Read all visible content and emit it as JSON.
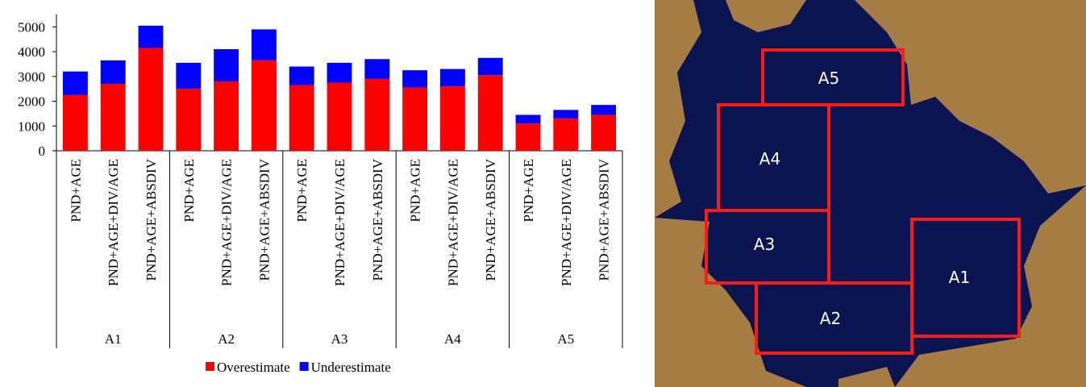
{
  "chart_data": {
    "type": "stacked_bar",
    "categories": [
      "PND+AGE",
      "PND+AGE+DIV/AGE",
      "PND+AGE+ABSDIV",
      "PND+AGE",
      "PND+AGE+DIV/AGE",
      "PND+AGE+ABSDIV",
      "PND+AGE",
      "PND+AGE+DIV/AGE",
      "PND+AGE+ABSDIV",
      "PND+AGE",
      "PND+AGE+DIV/AGE",
      "PND+AGE+ABSDIV",
      "PND+AGE",
      "PND+AGE+DIV/AGE",
      "PND+AGE+ABSDIV"
    ],
    "groups": [
      "A1",
      "A2",
      "A3",
      "A4",
      "A5"
    ],
    "series": [
      {
        "name": "Overestimate",
        "color": "#ff0000",
        "values": [
          2250,
          2700,
          4150,
          2500,
          2800,
          3650,
          2650,
          2750,
          2900,
          2550,
          2600,
          3050,
          1100,
          1300,
          1450
        ]
      },
      {
        "name": "Underestimate",
        "color": "#0000ff",
        "values": [
          950,
          950,
          900,
          1050,
          1300,
          1250,
          750,
          800,
          800,
          700,
          700,
          700,
          350,
          350,
          400
        ]
      }
    ],
    "ylim": [
      0,
      5500
    ],
    "yticks": [
      0,
      1000,
      2000,
      3000,
      4000,
      5000
    ],
    "legend": "bottom"
  },
  "map": {
    "regions": [
      {
        "label": "A1"
      },
      {
        "label": "A2"
      },
      {
        "label": "A3"
      },
      {
        "label": "A4"
      },
      {
        "label": "A5"
      }
    ]
  }
}
